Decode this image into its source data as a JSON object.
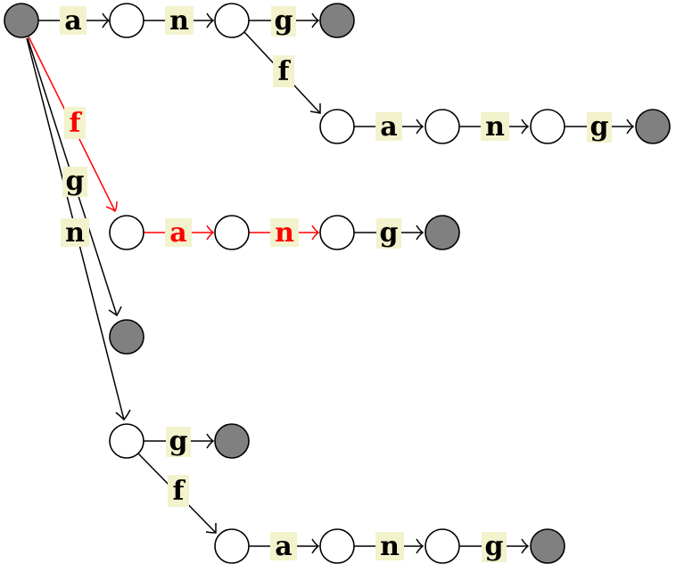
{
  "colors": {
    "final_node": "#808080",
    "highlight": "#ff0000",
    "label_background": "#f2f2cc"
  },
  "edge_labels": {
    "a": "a",
    "n": "n",
    "g": "g",
    "f": "f"
  }
}
